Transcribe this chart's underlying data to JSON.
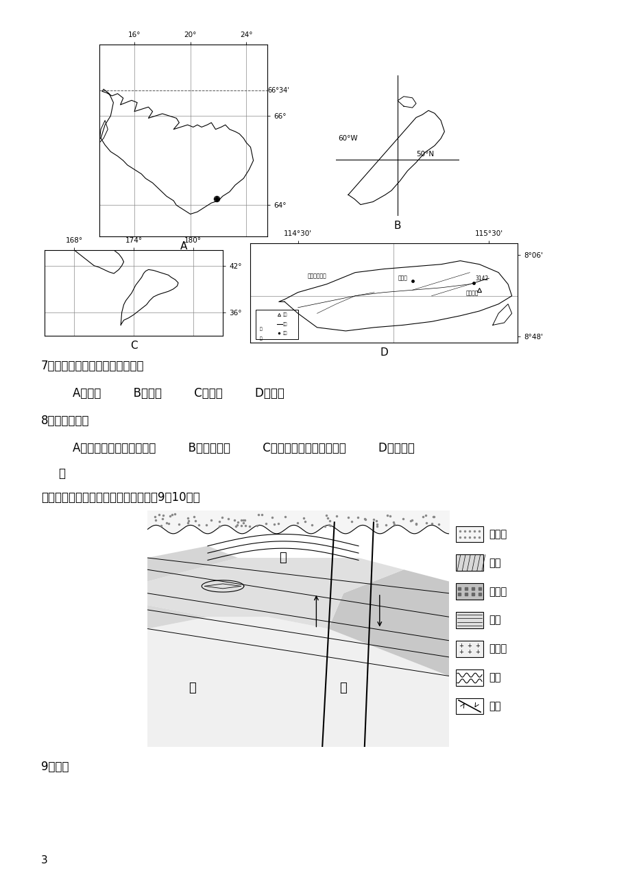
{
  "page_width": 9.2,
  "page_height": 12.74,
  "background_color": "#ffffff",
  "text_color": "#000000",
  "q7_text": "7．该建筑特点的主要功能不包括",
  "q7_options": "    A．遮阴         B．排水         C．防风         D．防潮",
  "q8_text": "8．该月，当地",
  "q8_options_a": "    A．正午太阳高度逐渐变大         B．昼长夜短         C．正午太阳高度逐渐变小         D．昼渐变",
  "q8_options_b": "短",
  "q9_intro": "下图为某地地质剖面示意图。读图回答9～10题。",
  "q9_text": "9．图中",
  "page_num": "3",
  "legend_items": [
    "沉积物",
    "砂岩",
    "石灰岩",
    "页岩",
    "花岗岩",
    "溶洞",
    "断层"
  ]
}
